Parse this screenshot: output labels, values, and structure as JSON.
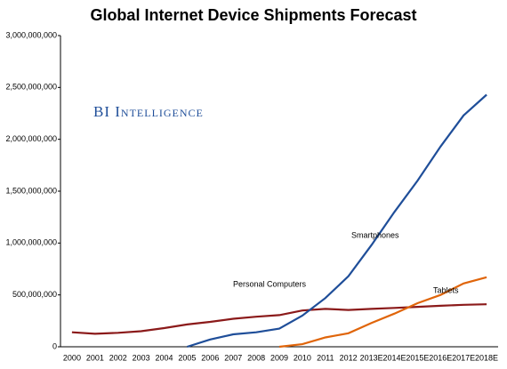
{
  "chart_data": {
    "type": "line",
    "title": "Global Internet Device Shipments Forecast",
    "watermark": "BI Intelligence",
    "categories": [
      "2000",
      "2001",
      "2002",
      "2003",
      "2004",
      "2005",
      "2006",
      "2007",
      "2008",
      "2009",
      "2010",
      "2011",
      "2012",
      "2013E",
      "2014E",
      "2015E",
      "2016E",
      "2017E",
      "2018E"
    ],
    "series": [
      {
        "name": "Personal Computers",
        "color": "#8b1a1a",
        "values": [
          140000000,
          125000000,
          135000000,
          150000000,
          180000000,
          215000000,
          240000000,
          270000000,
          290000000,
          305000000,
          350000000,
          365000000,
          355000000,
          365000000,
          375000000,
          385000000,
          395000000,
          405000000,
          410000000
        ]
      },
      {
        "name": "Smartphones",
        "color": "#1f4e99",
        "values": [
          null,
          null,
          null,
          null,
          null,
          0,
          70000000,
          120000000,
          140000000,
          175000000,
          300000000,
          470000000,
          680000000,
          980000000,
          1300000000,
          1600000000,
          1930000000,
          2230000000,
          2430000000
        ]
      },
      {
        "name": "Tablets",
        "color": "#e0650a",
        "values": [
          null,
          null,
          null,
          null,
          null,
          null,
          null,
          null,
          null,
          0,
          25000000,
          90000000,
          130000000,
          230000000,
          320000000,
          420000000,
          500000000,
          610000000,
          670000000
        ]
      }
    ],
    "ylim": [
      0,
      3000000000
    ],
    "yticks": [
      {
        "value": 0,
        "label": "0"
      },
      {
        "value": 500000000,
        "label": "500,000,000"
      },
      {
        "value": 1000000000,
        "label": "1,000,000,000"
      },
      {
        "value": 1500000000,
        "label": "1,500,000,000"
      },
      {
        "value": 2000000000,
        "label": "2,000,000,000"
      },
      {
        "value": 2500000000,
        "label": "2,500,000,000"
      },
      {
        "value": 3000000000,
        "label": "3,000,000,000"
      }
    ],
    "grid": false
  }
}
